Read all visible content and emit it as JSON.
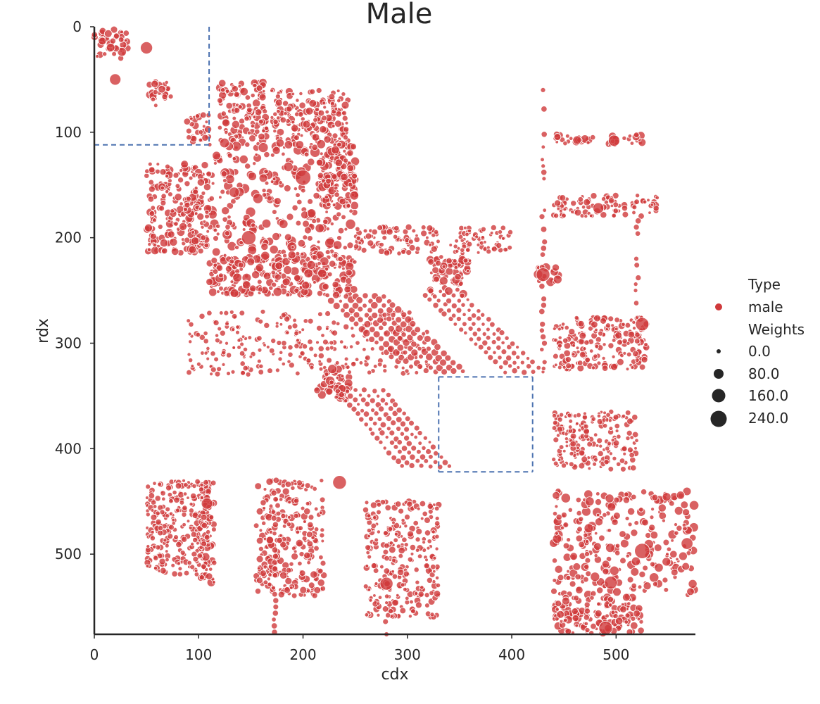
{
  "chart_data": {
    "type": "scatter",
    "title": "Male",
    "xlabel": "cdx",
    "ylabel": "rdx",
    "xlim": [
      0,
      576
    ],
    "ylim": [
      0,
      576
    ],
    "y_inverted": true,
    "grid": false,
    "x_ticks": [
      0,
      100,
      200,
      300,
      400,
      500
    ],
    "y_ticks": [
      0,
      100,
      200,
      300,
      400,
      500
    ],
    "x_tick_labels": [
      "0",
      "100",
      "200",
      "300",
      "400",
      "500"
    ],
    "y_tick_labels": [
      "0",
      "100",
      "200",
      "300",
      "400",
      "500"
    ],
    "series_color": "#d0393b",
    "region_line_color": "#4c72b0",
    "legend": {
      "placement": "right",
      "type_title": "Type",
      "type_entries": [
        {
          "label": "male",
          "color": "#d0393b"
        }
      ],
      "size_title": "Weights",
      "size_entries": [
        {
          "label": "0.0",
          "value": 0
        },
        {
          "label": "80.0",
          "value": 80
        },
        {
          "label": "160.0",
          "value": 160
        },
        {
          "label": "240.0",
          "value": 240
        }
      ]
    },
    "dashed_regions": [
      {
        "x0": 0,
        "y0": 0,
        "x1": 110,
        "y1": 112,
        "open_sides": [
          "left",
          "top"
        ]
      },
      {
        "x0": 330,
        "y0": 332,
        "x1": 420,
        "y1": 422,
        "open_sides": []
      }
    ],
    "clusters": [
      {
        "x0": 0,
        "x1": 32,
        "y0": 0,
        "y1": 30,
        "w": 45
      },
      {
        "x0": 50,
        "x1": 75,
        "y0": 52,
        "y1": 75,
        "w": 30
      },
      {
        "x0": 88,
        "x1": 110,
        "y0": 83,
        "y1": 110,
        "w": 30
      },
      {
        "x0": 120,
        "x1": 165,
        "y0": 52,
        "y1": 110,
        "w": 35
      },
      {
        "x0": 170,
        "x1": 245,
        "y0": 60,
        "y1": 110,
        "w": 30
      },
      {
        "x0": 110,
        "x1": 250,
        "y0": 110,
        "y1": 215,
        "w": 70
      },
      {
        "x0": 50,
        "x1": 110,
        "y0": 130,
        "y1": 215,
        "w": 35
      },
      {
        "x0": 110,
        "x1": 250,
        "y0": 215,
        "y1": 255,
        "w": 50
      },
      {
        "x0": 215,
        "x1": 250,
        "y0": 110,
        "y1": 170,
        "w": 50
      },
      {
        "x0": 320,
        "x1": 360,
        "y0": 218,
        "y1": 255,
        "w": 45
      },
      {
        "x0": 425,
        "x1": 445,
        "y0": 228,
        "y1": 242,
        "w": 60
      },
      {
        "x0": 213,
        "x1": 245,
        "y0": 322,
        "y1": 355,
        "w": 55
      },
      {
        "x0": 440,
        "x1": 575,
        "y0": 440,
        "y1": 540,
        "w": 55
      },
      {
        "x0": 440,
        "x1": 525,
        "y0": 540,
        "y1": 576,
        "w": 35
      },
      {
        "x0": 440,
        "x1": 525,
        "y0": 102,
        "y1": 112,
        "w": 40
      },
      {
        "x0": 440,
        "x1": 540,
        "y0": 160,
        "y1": 180,
        "w": 20
      },
      {
        "x0": 440,
        "x1": 530,
        "y0": 275,
        "y1": 325,
        "w": 20
      },
      {
        "x0": 440,
        "x1": 520,
        "y0": 365,
        "y1": 420,
        "w": 15
      },
      {
        "x0": 100,
        "x1": 115,
        "y0": 430,
        "y1": 530,
        "w": 40
      },
      {
        "x0": 155,
        "x1": 220,
        "y0": 430,
        "y1": 540,
        "w": 25
      },
      {
        "x0": 260,
        "x1": 330,
        "y0": 450,
        "y1": 560,
        "w": 20
      },
      {
        "x0": 50,
        "x1": 110,
        "y0": 430,
        "y1": 520,
        "w": 15
      },
      {
        "x0": 90,
        "x1": 320,
        "y0": 270,
        "y1": 330,
        "w": 10
      },
      {
        "x0": 250,
        "x1": 330,
        "y0": 190,
        "y1": 215,
        "w": 15
      },
      {
        "x0": 340,
        "x1": 400,
        "y0": 190,
        "y1": 215,
        "w": 10
      }
    ],
    "diagonal_bands": [
      {
        "x0": 250,
        "y0": 255,
        "x1": 330,
        "y1": 330,
        "n": 7,
        "w": 25
      },
      {
        "x0": 335,
        "y0": 255,
        "x1": 415,
        "y1": 330,
        "n": 5,
        "w": 10
      },
      {
        "x0": 255,
        "y0": 345,
        "x1": 320,
        "y1": 420,
        "n": 6,
        "w": 12
      }
    ],
    "highlight_points": [
      {
        "x": 50,
        "y": 20,
        "w": 110
      },
      {
        "x": 20,
        "y": 50,
        "w": 90
      },
      {
        "x": 200,
        "y": 143,
        "w": 210
      },
      {
        "x": 148,
        "y": 200,
        "w": 170
      },
      {
        "x": 430,
        "y": 235,
        "w": 150
      },
      {
        "x": 525,
        "y": 282,
        "w": 140
      },
      {
        "x": 235,
        "y": 432,
        "w": 150
      },
      {
        "x": 280,
        "y": 528,
        "w": 130
      },
      {
        "x": 525,
        "y": 497,
        "w": 200
      },
      {
        "x": 490,
        "y": 570,
        "w": 150
      },
      {
        "x": 568,
        "y": 490,
        "w": 100
      },
      {
        "x": 495,
        "y": 527,
        "w": 130
      },
      {
        "x": 498,
        "y": 108,
        "w": 90
      },
      {
        "x": 483,
        "y": 172,
        "w": 80
      },
      {
        "x": 108,
        "y": 452,
        "w": 90
      }
    ]
  }
}
